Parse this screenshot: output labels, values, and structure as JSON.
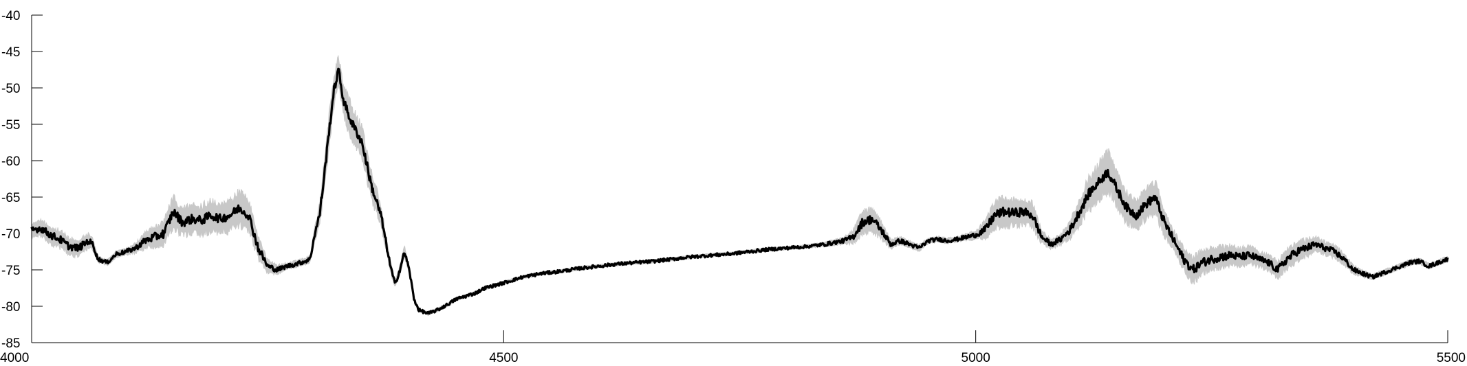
{
  "chart_data": {
    "type": "line",
    "title": "",
    "xlabel": "",
    "ylabel": "",
    "xlim": [
      4000,
      5500
    ],
    "ylim": [
      -85,
      -40
    ],
    "x_ticks": [
      "4000",
      "4500",
      "5000",
      "5500"
    ],
    "y_ticks": [
      "-40",
      "-45",
      "-50",
      "-55",
      "-60",
      "-65",
      "-70",
      "-75",
      "-80",
      "-85"
    ],
    "grid": false,
    "legend": "none",
    "colors": {
      "mean": "#000000",
      "band": "#c8c8c8",
      "axis": "#000000"
    },
    "series": [
      {
        "role": "mean",
        "x": [
          4000,
          4010,
          4020,
          4030,
          4040,
          4050,
          4060,
          4065,
          4070,
          4080,
          4090,
          4100,
          4110,
          4120,
          4130,
          4140,
          4150,
          4160,
          4170,
          4180,
          4190,
          4200,
          4210,
          4220,
          4230,
          4240,
          4250,
          4260,
          4270,
          4280,
          4290,
          4295,
          4300,
          4305,
          4310,
          4315,
          4320,
          4325,
          4330,
          4335,
          4340,
          4350,
          4360,
          4370,
          4375,
          4380,
          4385,
          4390,
          4395,
          4400,
          4405,
          4410,
          4420,
          4430,
          4440,
          4450,
          4460,
          4470,
          4480,
          4500,
          4520,
          4540,
          4560,
          4580,
          4600,
          4620,
          4640,
          4660,
          4680,
          4700,
          4720,
          4740,
          4760,
          4780,
          4800,
          4820,
          4840,
          4860,
          4870,
          4880,
          4890,
          4900,
          4910,
          4920,
          4930,
          4940,
          4950,
          4960,
          4970,
          4980,
          4990,
          5000,
          5010,
          5020,
          5030,
          5040,
          5050,
          5060,
          5070,
          5080,
          5090,
          5100,
          5110,
          5120,
          5130,
          5140,
          5150,
          5160,
          5170,
          5180,
          5190,
          5200,
          5210,
          5220,
          5230,
          5240,
          5250,
          5260,
          5270,
          5280,
          5290,
          5300,
          5310,
          5320,
          5330,
          5340,
          5350,
          5360,
          5370,
          5380,
          5390,
          5400,
          5410,
          5420,
          5430,
          5440,
          5450,
          5460,
          5470,
          5480,
          5490,
          5500
        ],
        "y": [
          -69.5,
          -69.3,
          -70.2,
          -70.8,
          -71.8,
          -72.0,
          -71.0,
          -71.5,
          -73.5,
          -74.0,
          -72.8,
          -72.5,
          -72.0,
          -71.0,
          -70.5,
          -70.0,
          -67.0,
          -68.5,
          -68.0,
          -68.2,
          -67.5,
          -68.0,
          -67.5,
          -66.5,
          -67.5,
          -72.0,
          -74.5,
          -75.0,
          -74.5,
          -74.2,
          -73.8,
          -73.5,
          -70.0,
          -67.5,
          -62.0,
          -56.0,
          -50.5,
          -47.5,
          -51.5,
          -53.5,
          -55.0,
          -57.5,
          -63.5,
          -67.5,
          -71.0,
          -74.5,
          -77.0,
          -75.0,
          -72.5,
          -75.0,
          -79.0,
          -80.5,
          -81.0,
          -80.5,
          -79.8,
          -79.0,
          -78.6,
          -78.2,
          -77.5,
          -76.8,
          -76.0,
          -75.5,
          -75.2,
          -74.8,
          -74.5,
          -74.2,
          -74.0,
          -73.8,
          -73.5,
          -73.2,
          -73.0,
          -72.8,
          -72.5,
          -72.2,
          -72.0,
          -71.8,
          -71.5,
          -71.0,
          -70.5,
          -68.5,
          -68.0,
          -69.5,
          -71.5,
          -71.0,
          -71.5,
          -72.0,
          -71.0,
          -70.8,
          -71.0,
          -70.8,
          -70.5,
          -70.2,
          -69.5,
          -67.5,
          -67.0,
          -67.2,
          -67.0,
          -67.5,
          -70.5,
          -71.5,
          -70.8,
          -69.5,
          -67.0,
          -64.5,
          -63.0,
          -61.5,
          -64.0,
          -66.5,
          -67.5,
          -66.0,
          -65.0,
          -68.5,
          -71.0,
          -73.5,
          -75.0,
          -74.0,
          -73.5,
          -73.2,
          -73.0,
          -73.2,
          -73.0,
          -73.5,
          -74.0,
          -75.0,
          -73.5,
          -72.5,
          -72.0,
          -71.5,
          -72.0,
          -72.5,
          -73.5,
          -75.0,
          -75.5,
          -76.0,
          -75.5,
          -75.0,
          -74.5,
          -74.0,
          -73.8,
          -74.5,
          -74.0,
          -73.5
        ],
        "spread": [
          1.2,
          1.5,
          1.6,
          1.6,
          1.5,
          1.5,
          1.3,
          1.0,
          0.6,
          0.5,
          0.6,
          0.6,
          0.9,
          1.4,
          1.8,
          2.2,
          2.8,
          2.6,
          2.5,
          2.6,
          2.8,
          2.6,
          2.8,
          3.0,
          2.8,
          2.0,
          1.2,
          0.8,
          0.6,
          0.6,
          0.6,
          0.6,
          1.2,
          2.0,
          2.6,
          3.0,
          2.8,
          2.4,
          2.8,
          3.0,
          3.0,
          2.8,
          2.6,
          2.0,
          1.4,
          1.0,
          0.6,
          0.8,
          1.0,
          0.6,
          0.4,
          0.3,
          0.3,
          0.3,
          0.3,
          0.3,
          0.3,
          0.3,
          0.3,
          0.3,
          0.3,
          0.3,
          0.3,
          0.3,
          0.3,
          0.3,
          0.3,
          0.3,
          0.3,
          0.3,
          0.3,
          0.3,
          0.3,
          0.3,
          0.3,
          0.3,
          0.4,
          0.6,
          1.2,
          2.0,
          2.2,
          1.6,
          0.8,
          0.7,
          0.6,
          0.6,
          0.5,
          0.5,
          0.5,
          0.5,
          0.6,
          0.8,
          1.6,
          2.4,
          2.6,
          2.4,
          2.4,
          2.2,
          1.2,
          0.8,
          1.0,
          1.6,
          2.4,
          3.0,
          3.4,
          3.6,
          3.0,
          2.8,
          2.6,
          2.8,
          3.0,
          2.4,
          1.8,
          2.0,
          2.4,
          2.2,
          2.0,
          2.0,
          1.8,
          1.6,
          1.6,
          1.4,
          1.4,
          1.6,
          1.8,
          1.8,
          1.6,
          1.4,
          1.2,
          1.2,
          1.0,
          0.8,
          0.6,
          0.5,
          0.5,
          0.5,
          0.5,
          0.5,
          0.5,
          0.5,
          0.5,
          0.5
        ]
      }
    ]
  }
}
